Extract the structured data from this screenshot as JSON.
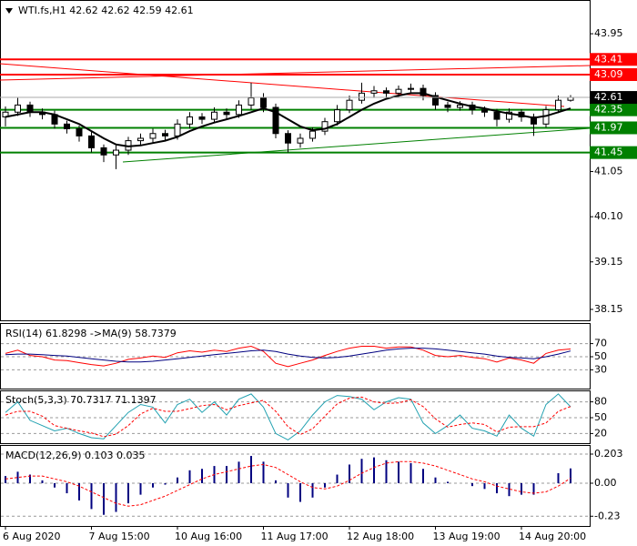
{
  "chart_data": [
    {
      "type": "candlestick",
      "title": "WTI.fs,H1  42.62 42.62 42.59 42.61",
      "categories": [
        "6 Aug 2020",
        null,
        null,
        null,
        null,
        null,
        null,
        "7 Aug 15:00",
        null,
        null,
        null,
        null,
        null,
        null,
        "10 Aug 16:00",
        null,
        null,
        null,
        null,
        null,
        null,
        "11 Aug 17:00",
        null,
        null,
        null,
        null,
        null,
        null,
        "12 Aug 18:00",
        null,
        null,
        null,
        null,
        null,
        null,
        "13 Aug 19:00",
        null,
        null,
        null,
        null,
        null,
        null,
        "14 Aug 20:00",
        null,
        null,
        null,
        null
      ],
      "open": [
        42.2,
        42.3,
        42.45,
        42.3,
        42.25,
        42.05,
        41.95,
        41.8,
        41.55,
        41.4,
        41.5,
        41.7,
        41.75,
        41.85,
        41.8,
        42.05,
        42.2,
        42.15,
        42.3,
        42.25,
        42.45,
        42.6,
        42.4,
        41.85,
        41.65,
        41.75,
        41.9,
        42.1,
        42.35,
        42.55,
        42.7,
        42.75,
        42.7,
        42.78,
        42.8,
        42.65,
        42.45,
        42.4,
        42.45,
        42.35,
        42.3,
        42.15,
        42.3,
        42.2,
        42.05,
        42.35,
        42.55
      ],
      "high": [
        42.42,
        42.6,
        42.52,
        42.38,
        42.33,
        42.12,
        42.02,
        41.88,
        41.62,
        41.6,
        41.78,
        41.85,
        41.95,
        41.93,
        42.15,
        42.3,
        42.28,
        42.4,
        42.38,
        42.55,
        42.92,
        42.7,
        42.48,
        41.92,
        41.85,
        41.98,
        42.18,
        42.45,
        42.65,
        42.92,
        42.85,
        42.82,
        42.86,
        42.9,
        42.88,
        42.72,
        42.52,
        42.53,
        42.52,
        42.42,
        42.37,
        42.38,
        42.36,
        42.27,
        42.43,
        42.65,
        42.66
      ],
      "low": [
        42.0,
        42.22,
        42.2,
        42.15,
        41.95,
        41.85,
        41.68,
        41.45,
        41.25,
        41.1,
        41.4,
        41.6,
        41.65,
        41.7,
        41.72,
        41.95,
        42.05,
        42.08,
        42.15,
        42.18,
        42.35,
        42.3,
        41.75,
        41.45,
        41.55,
        41.68,
        41.82,
        42.02,
        42.28,
        42.48,
        42.6,
        42.62,
        42.62,
        42.7,
        42.55,
        42.35,
        42.3,
        42.33,
        42.25,
        42.2,
        42.0,
        42.08,
        42.1,
        41.8,
        41.98,
        42.28,
        42.52
      ],
      "close": [
        42.3,
        42.45,
        42.3,
        42.25,
        42.05,
        41.95,
        41.8,
        41.55,
        41.4,
        41.5,
        41.7,
        41.75,
        41.85,
        41.8,
        42.05,
        42.2,
        42.15,
        42.3,
        42.25,
        42.45,
        42.6,
        42.4,
        41.85,
        41.65,
        41.75,
        41.9,
        42.1,
        42.35,
        42.55,
        42.7,
        42.75,
        42.7,
        42.78,
        42.8,
        42.65,
        42.45,
        42.4,
        42.45,
        42.35,
        42.3,
        42.15,
        42.3,
        42.2,
        42.05,
        42.35,
        42.55,
        42.61
      ],
      "up_color": "#ffffff",
      "down_color": "#000000",
      "ma": {
        "color": "#000000",
        "values": [
          42.2,
          42.25,
          42.3,
          42.3,
          42.25,
          42.15,
          42.05,
          41.9,
          41.75,
          41.62,
          41.58,
          41.6,
          41.65,
          41.7,
          41.78,
          41.9,
          42.0,
          42.08,
          42.15,
          42.22,
          42.3,
          42.38,
          42.3,
          42.15,
          42.0,
          41.92,
          41.95,
          42.05,
          42.2,
          42.35,
          42.48,
          42.58,
          42.65,
          42.7,
          42.7,
          42.62,
          42.55,
          42.48,
          42.42,
          42.38,
          42.32,
          42.27,
          42.23,
          42.18,
          42.22,
          42.3,
          42.38
        ]
      },
      "ylim": [
        37.92,
        44.66
      ],
      "yticks": [
        43.95,
        41.05,
        {
          "value": 40.1,
          "label": "40.10"
        },
        39.15,
        38.15
      ],
      "levels": [
        {
          "value": 43.41,
          "color": "#ff0000"
        },
        {
          "value": 43.09,
          "color": "#ff0000"
        },
        {
          "value": 42.35,
          "color": "#008000"
        },
        {
          "value": 41.97,
          "color": "#008000"
        },
        {
          "value": 41.45,
          "color": "#008000"
        }
      ],
      "last_price": 42.61
    },
    {
      "type": "line",
      "title": "RSI(14) 61.8298  ->MA(9) 58.7379",
      "ylim": [
        0,
        100
      ],
      "yticks": [
        70,
        50,
        30
      ],
      "series": [
        {
          "color": "#ff0000",
          "values": [
            55,
            60,
            52,
            50,
            45,
            44,
            41,
            38,
            36,
            40,
            46,
            48,
            51,
            49,
            56,
            59,
            57,
            60,
            58,
            63,
            66,
            58,
            40,
            35,
            40,
            45,
            52,
            58,
            63,
            66,
            66,
            63,
            65,
            65,
            60,
            52,
            50,
            52,
            49,
            47,
            42,
            48,
            45,
            40,
            55,
            60,
            61.8298
          ]
        },
        {
          "color": "#000080",
          "values": [
            53,
            54,
            54,
            53,
            52,
            51,
            49,
            47,
            45,
            43,
            42,
            42,
            43,
            45,
            47,
            49,
            51,
            53,
            55,
            57,
            59,
            60,
            58,
            54,
            51,
            49,
            48,
            49,
            51,
            54,
            57,
            60,
            62,
            63,
            63,
            62,
            60,
            58,
            56,
            54,
            51,
            49,
            48,
            47,
            50,
            54,
            58.7379
          ]
        }
      ]
    },
    {
      "type": "line",
      "title": "Stoch(5,3,3) 70.7317 71.1397",
      "ylim": [
        0,
        100
      ],
      "yticks": [
        80,
        50,
        20
      ],
      "series": [
        {
          "color": "#20a0b0",
          "values": [
            60,
            80,
            45,
            35,
            25,
            30,
            20,
            12,
            10,
            35,
            60,
            75,
            70,
            40,
            75,
            85,
            60,
            80,
            55,
            85,
            95,
            70,
            20,
            8,
            25,
            55,
            80,
            92,
            90,
            85,
            65,
            80,
            88,
            85,
            40,
            20,
            35,
            55,
            30,
            25,
            15,
            55,
            30,
            15,
            75,
            95,
            70.7317
          ]
        },
        {
          "color": "#ff0000",
          "dashed": true,
          "values": [
            55,
            62,
            62,
            53,
            35,
            30,
            25,
            21,
            14,
            19,
            35,
            57,
            68,
            62,
            62,
            67,
            73,
            75,
            65,
            73,
            78,
            83,
            62,
            33,
            18,
            29,
            53,
            76,
            87,
            89,
            80,
            77,
            78,
            84,
            71,
            48,
            32,
            37,
            40,
            37,
            23,
            32,
            33,
            33,
            40,
            62,
            71.1397
          ]
        }
      ]
    },
    {
      "type": "macd",
      "title": "MACD(12,26,9) 0.103 0.035",
      "ylim": [
        -0.298,
        0.26
      ],
      "yticks": [
        0.203,
        {
          "value": 0,
          "label": "0.00"
        },
        -0.23
      ],
      "histogram": {
        "color": "#000080",
        "values": [
          0.05,
          0.08,
          0.06,
          0.02,
          -0.03,
          -0.07,
          -0.12,
          -0.18,
          -0.22,
          -0.2,
          -0.14,
          -0.08,
          -0.03,
          -0.01,
          0.04,
          0.09,
          0.1,
          0.12,
          0.12,
          0.15,
          0.19,
          0.15,
          0.02,
          -0.1,
          -0.13,
          -0.1,
          -0.03,
          0.06,
          0.13,
          0.17,
          0.18,
          0.16,
          0.15,
          0.14,
          0.1,
          0.04,
          0.01,
          0.0,
          -0.02,
          -0.04,
          -0.07,
          -0.09,
          -0.08,
          -0.08,
          0.0,
          0.07,
          0.103
        ]
      },
      "signal": {
        "color": "#ff0000",
        "dashed": true,
        "values": [
          0.03,
          0.04,
          0.05,
          0.05,
          0.03,
          0.01,
          -0.02,
          -0.06,
          -0.1,
          -0.14,
          -0.16,
          -0.15,
          -0.12,
          -0.09,
          -0.05,
          -0.01,
          0.03,
          0.06,
          0.08,
          0.1,
          0.12,
          0.13,
          0.11,
          0.06,
          0.01,
          -0.03,
          -0.04,
          -0.02,
          0.02,
          0.07,
          0.11,
          0.14,
          0.15,
          0.15,
          0.14,
          0.12,
          0.09,
          0.06,
          0.03,
          0.01,
          -0.02,
          -0.04,
          -0.06,
          -0.07,
          -0.06,
          -0.02,
          0.035
        ]
      }
    }
  ]
}
